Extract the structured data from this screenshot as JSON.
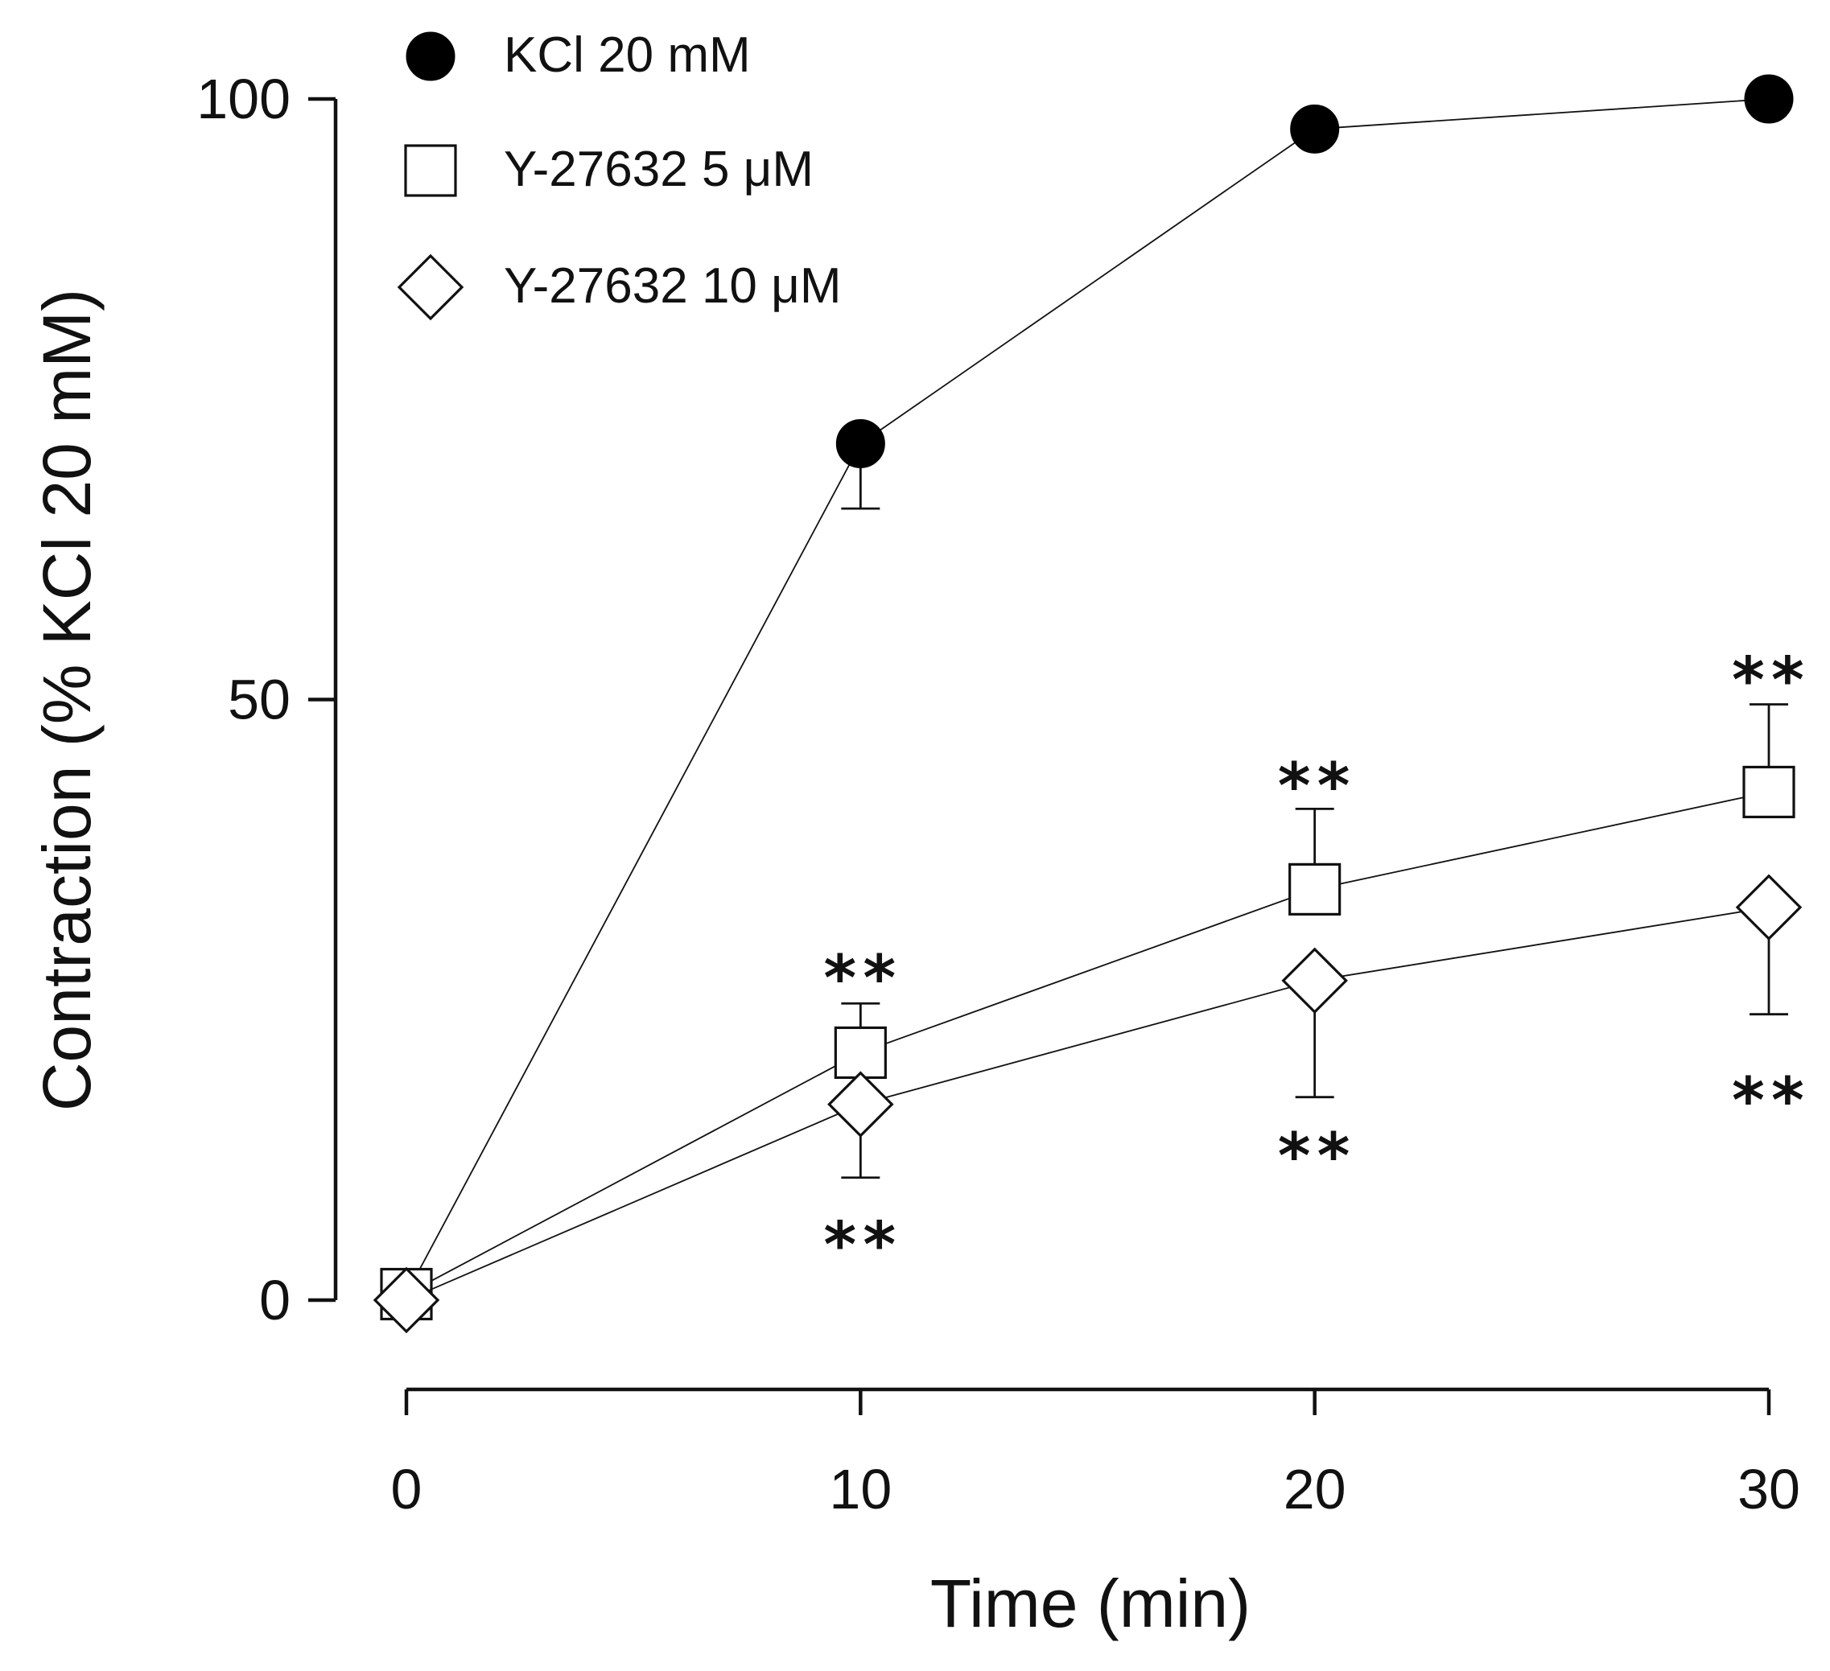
{
  "chart_data": {
    "type": "line",
    "title": "",
    "xlabel": "Time (min)",
    "ylabel": "Contraction (% KCl 20 mM)",
    "x": [
      0,
      10,
      20,
      30
    ],
    "xlim": [
      0,
      30
    ],
    "ylim": [
      0,
      100
    ],
    "x_ticks": [
      0,
      10,
      20,
      30
    ],
    "y_ticks": [
      0,
      50,
      100
    ],
    "grid": false,
    "legend_position": "top-left",
    "series": [
      {
        "name": "KCl 20 mM",
        "marker": "filled-circle",
        "color": "#000000",
        "values": [
          0.5,
          71.3,
          97.5,
          100
        ],
        "errors": [
          0,
          5.4,
          0,
          0
        ],
        "error_direction": "down"
      },
      {
        "name": "Y-27632 5 μM",
        "marker": "open-square",
        "color": "#111111",
        "values": [
          0.5,
          20.6,
          34.2,
          42.3
        ],
        "errors": [
          0,
          4.1,
          6.7,
          7.3
        ],
        "error_direction": "up"
      },
      {
        "name": "Y-27632 10 μM",
        "marker": "open-diamond",
        "color": "#111111",
        "values": [
          0,
          16.3,
          26.6,
          32.7
        ],
        "errors": [
          0,
          6.1,
          9.7,
          8.9
        ],
        "error_direction": "down"
      }
    ],
    "annotations": [
      {
        "text": "**",
        "x": 10,
        "y": 27.0,
        "series": "Y-27632 5 μM"
      },
      {
        "text": "**",
        "x": 20,
        "y": 43.0,
        "series": "Y-27632 5 μM"
      },
      {
        "text": "**",
        "x": 30,
        "y": 51.8,
        "series": "Y-27632 5 μM"
      },
      {
        "text": "**",
        "x": 10,
        "y": 4.8,
        "series": "Y-27632 10 μM"
      },
      {
        "text": "**",
        "x": 20,
        "y": 12.2,
        "series": "Y-27632 10 μM"
      },
      {
        "text": "**",
        "x": 30,
        "y": 16.8,
        "series": "Y-27632 10 μM"
      }
    ]
  }
}
